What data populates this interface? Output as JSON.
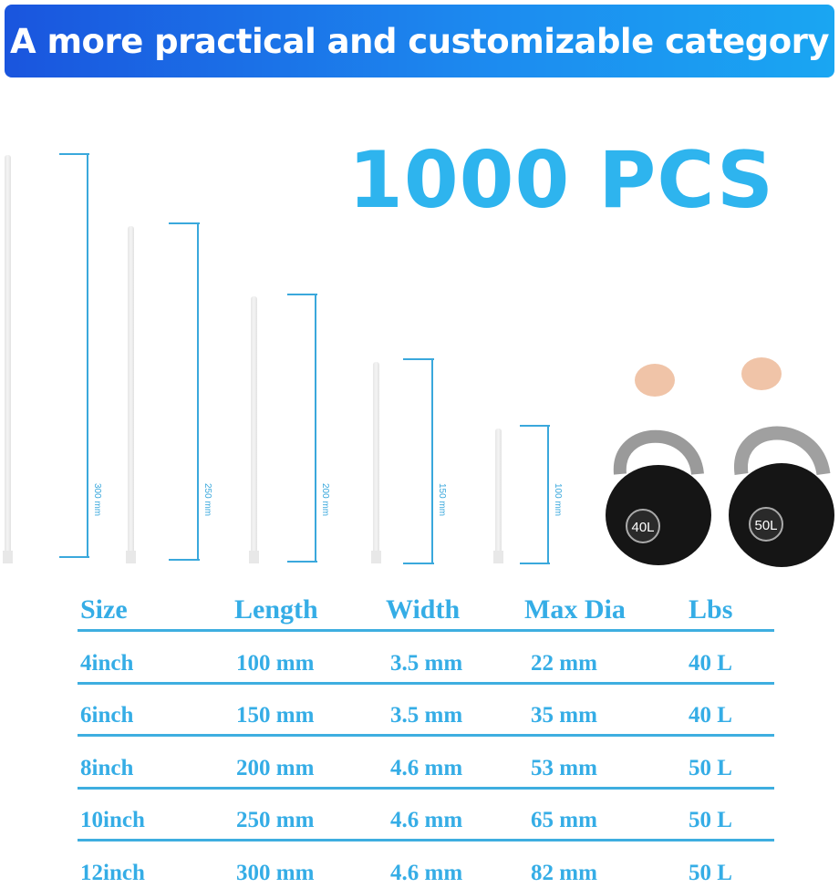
{
  "banner": {
    "title": "A more practical and customizable category"
  },
  "quantity": "1000 PCS",
  "brackets": [
    "300 mm",
    "250 mm",
    "200 mm",
    "150 mm",
    "100 mm"
  ],
  "kettlebells": [
    "40L",
    "50L"
  ],
  "colors": {
    "accent": "#2eb4ee",
    "banner_start": "#1a55de",
    "banner_end": "#1aa6f2"
  },
  "table": {
    "headers": [
      "Size",
      "Length",
      "Width",
      "Max Dia",
      "Lbs"
    ],
    "rows": [
      [
        "4inch",
        "100 mm",
        "3.5 mm",
        "22 mm",
        "40 L"
      ],
      [
        "6inch",
        "150 mm",
        "3.5 mm",
        "35 mm",
        "40 L"
      ],
      [
        "8inch",
        "200 mm",
        "4.6 mm",
        "53 mm",
        "50 L"
      ],
      [
        "10inch",
        "250 mm",
        "4.6 mm",
        "65 mm",
        "50 L"
      ],
      [
        "12inch",
        "300 mm",
        "4.6 mm",
        "82 mm",
        "50 L"
      ]
    ]
  }
}
